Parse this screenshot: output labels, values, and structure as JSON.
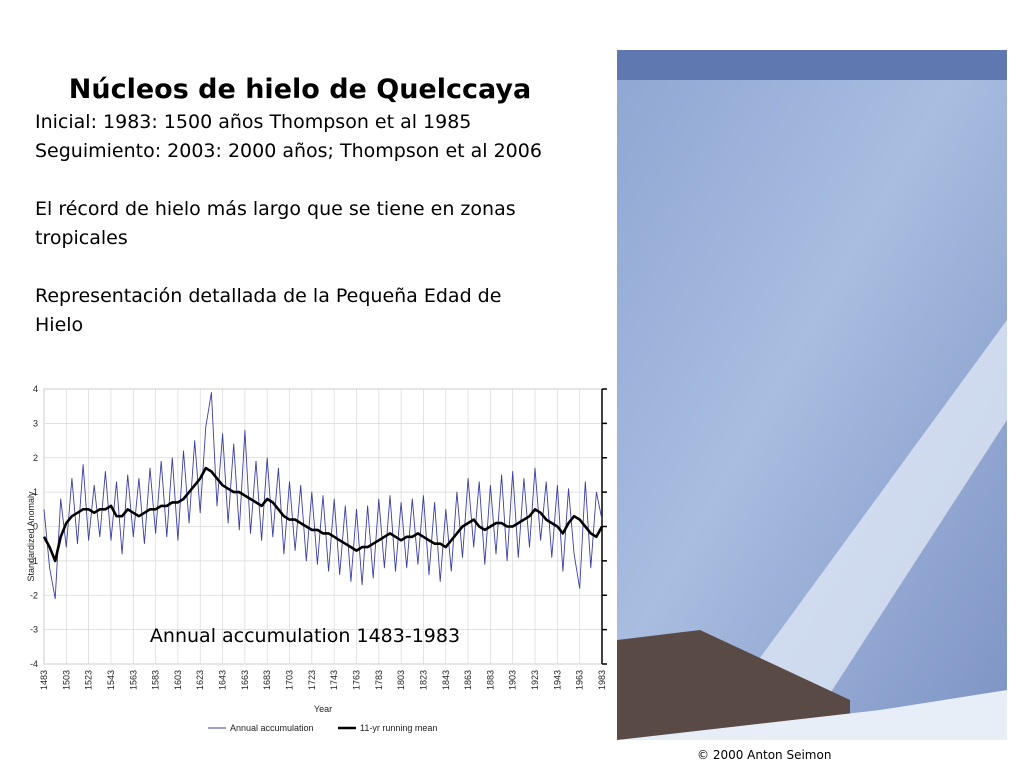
{
  "slide": {
    "title": "Núcleos de hielo de Quelccaya",
    "paragraphs": [
      [
        "Inicial: 1983: 1500 años Thompson et al 1985",
        "Seguimiento: 2003: 2000 años; Thompson et al 2006"
      ],
      [
        "El récord de hielo más largo que se tiene en zonas",
        "tropicales"
      ],
      [
        "Representación detallada de la Pequeña Edad de",
        "Hielo"
      ]
    ],
    "photo_credit": "© 2000 Anton Seimon"
  },
  "chart_data": {
    "type": "line",
    "xlabel": "Year",
    "ylabel": "Standardized Anomaly",
    "annotation": "Annual accumulation 1483-1983",
    "grid": true,
    "xlim": [
      1483,
      1983
    ],
    "ylim": [
      -4,
      4
    ],
    "xticks": [
      1483,
      1503,
      1523,
      1543,
      1563,
      1583,
      1603,
      1623,
      1643,
      1663,
      1683,
      1703,
      1723,
      1743,
      1763,
      1783,
      1803,
      1823,
      1843,
      1863,
      1883,
      1903,
      1923,
      1943,
      1963,
      1983
    ],
    "yticks": [
      -4,
      -3,
      -2,
      -1,
      0,
      1,
      2,
      3,
      4
    ],
    "x": [
      1483,
      1488,
      1493,
      1498,
      1503,
      1508,
      1513,
      1518,
      1523,
      1528,
      1533,
      1538,
      1543,
      1548,
      1553,
      1558,
      1563,
      1568,
      1573,
      1578,
      1583,
      1588,
      1593,
      1598,
      1603,
      1608,
      1613,
      1618,
      1623,
      1628,
      1633,
      1638,
      1643,
      1648,
      1653,
      1658,
      1663,
      1668,
      1673,
      1678,
      1683,
      1688,
      1693,
      1698,
      1703,
      1708,
      1713,
      1718,
      1723,
      1728,
      1733,
      1738,
      1743,
      1748,
      1753,
      1758,
      1763,
      1768,
      1773,
      1778,
      1783,
      1788,
      1793,
      1798,
      1803,
      1808,
      1813,
      1818,
      1823,
      1828,
      1833,
      1838,
      1843,
      1848,
      1853,
      1858,
      1863,
      1868,
      1873,
      1878,
      1883,
      1888,
      1893,
      1898,
      1903,
      1908,
      1913,
      1918,
      1923,
      1928,
      1933,
      1938,
      1943,
      1948,
      1953,
      1958,
      1963,
      1968,
      1973,
      1978,
      1983
    ],
    "series": [
      {
        "name": "Annual accumulation",
        "color": "#3b3fa6",
        "values": [
          0.5,
          -1.2,
          -2.1,
          0.8,
          -0.6,
          1.4,
          -0.5,
          1.8,
          -0.4,
          1.2,
          -0.3,
          1.6,
          -0.4,
          1.3,
          -0.8,
          1.5,
          -0.3,
          1.4,
          -0.5,
          1.7,
          -0.2,
          1.9,
          -0.3,
          2.0,
          -0.4,
          2.2,
          0.1,
          2.5,
          0.4,
          2.9,
          3.9,
          0.6,
          2.7,
          0.1,
          2.4,
          -0.1,
          2.8,
          -0.2,
          1.9,
          -0.4,
          2.0,
          -0.3,
          1.7,
          -0.8,
          1.3,
          -0.7,
          1.2,
          -1.0,
          1.0,
          -1.1,
          0.9,
          -1.3,
          0.8,
          -1.4,
          0.6,
          -1.6,
          0.5,
          -1.7,
          0.6,
          -1.5,
          0.8,
          -1.2,
          0.9,
          -1.3,
          0.7,
          -1.2,
          0.8,
          -1.1,
          0.9,
          -1.4,
          0.7,
          -1.6,
          0.5,
          -1.3,
          1.0,
          -0.9,
          1.4,
          -0.6,
          1.3,
          -1.1,
          1.2,
          -0.8,
          1.5,
          -1.0,
          1.6,
          -0.9,
          1.4,
          -0.6,
          1.7,
          -0.4,
          1.3,
          -0.9,
          1.2,
          -1.3,
          1.1,
          -0.8,
          -1.8,
          1.3,
          -1.2,
          1.0,
          0.2
        ]
      },
      {
        "name": "11-yr running mean",
        "color": "#000000",
        "values": [
          -0.3,
          -0.6,
          -1.0,
          -0.3,
          0.1,
          0.3,
          0.4,
          0.5,
          0.5,
          0.4,
          0.5,
          0.5,
          0.6,
          0.3,
          0.3,
          0.5,
          0.4,
          0.3,
          0.4,
          0.5,
          0.5,
          0.6,
          0.6,
          0.7,
          0.7,
          0.8,
          1.0,
          1.2,
          1.4,
          1.7,
          1.6,
          1.4,
          1.2,
          1.1,
          1.0,
          1.0,
          0.9,
          0.8,
          0.7,
          0.6,
          0.8,
          0.7,
          0.5,
          0.3,
          0.2,
          0.2,
          0.1,
          0.0,
          -0.1,
          -0.1,
          -0.2,
          -0.2,
          -0.3,
          -0.4,
          -0.5,
          -0.6,
          -0.7,
          -0.6,
          -0.6,
          -0.5,
          -0.4,
          -0.3,
          -0.2,
          -0.3,
          -0.4,
          -0.3,
          -0.3,
          -0.2,
          -0.3,
          -0.4,
          -0.5,
          -0.5,
          -0.6,
          -0.4,
          -0.2,
          0.0,
          0.1,
          0.2,
          0.0,
          -0.1,
          0.0,
          0.1,
          0.1,
          0.0,
          0.0,
          0.1,
          0.2,
          0.3,
          0.5,
          0.4,
          0.2,
          0.1,
          0.0,
          -0.2,
          0.1,
          0.3,
          0.2,
          0.0,
          -0.2,
          -0.3,
          0.0
        ]
      }
    ]
  }
}
